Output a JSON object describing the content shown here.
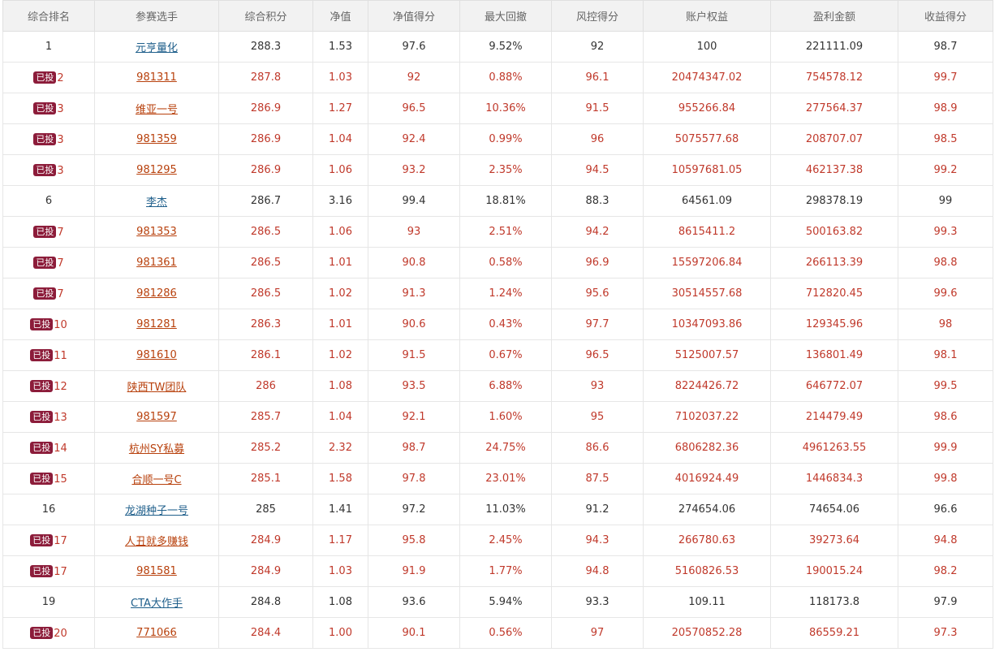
{
  "headers": [
    "综合排名",
    "参赛选手",
    "综合积分",
    "净值",
    "净值得分",
    "最大回撤",
    "风控得分",
    "账户权益",
    "盈利金额",
    "收益得分"
  ],
  "badge_label": "已投",
  "colors": {
    "invested_text": "#c0392b",
    "normal_text": "#333333",
    "link_blue": "#1f5f8b",
    "badge_bg": "#8c1c3a"
  },
  "rows": [
    {
      "invested": false,
      "rank": "1",
      "name": "元亨量化",
      "score": "288.3",
      "nav": "1.53",
      "nav_score": "97.6",
      "max_dd": "9.52%",
      "risk_score": "92",
      "equity": "100",
      "profit": "221111.09",
      "return_score": "98.7"
    },
    {
      "invested": true,
      "rank": "2",
      "name": "981311",
      "score": "287.8",
      "nav": "1.03",
      "nav_score": "92",
      "max_dd": "0.88%",
      "risk_score": "96.1",
      "equity": "20474347.02",
      "profit": "754578.12",
      "return_score": "99.7"
    },
    {
      "invested": true,
      "rank": "3",
      "name": "维亚一号",
      "score": "286.9",
      "nav": "1.27",
      "nav_score": "96.5",
      "max_dd": "10.36%",
      "risk_score": "91.5",
      "equity": "955266.84",
      "profit": "277564.37",
      "return_score": "98.9"
    },
    {
      "invested": true,
      "rank": "3",
      "name": "981359",
      "score": "286.9",
      "nav": "1.04",
      "nav_score": "92.4",
      "max_dd": "0.99%",
      "risk_score": "96",
      "equity": "5075577.68",
      "profit": "208707.07",
      "return_score": "98.5"
    },
    {
      "invested": true,
      "rank": "3",
      "name": "981295",
      "score": "286.9",
      "nav": "1.06",
      "nav_score": "93.2",
      "max_dd": "2.35%",
      "risk_score": "94.5",
      "equity": "10597681.05",
      "profit": "462137.38",
      "return_score": "99.2"
    },
    {
      "invested": false,
      "rank": "6",
      "name": "李杰",
      "score": "286.7",
      "nav": "3.16",
      "nav_score": "99.4",
      "max_dd": "18.81%",
      "risk_score": "88.3",
      "equity": "64561.09",
      "profit": "298378.19",
      "return_score": "99"
    },
    {
      "invested": true,
      "rank": "7",
      "name": "981353",
      "score": "286.5",
      "nav": "1.06",
      "nav_score": "93",
      "max_dd": "2.51%",
      "risk_score": "94.2",
      "equity": "8615411.2",
      "profit": "500163.82",
      "return_score": "99.3"
    },
    {
      "invested": true,
      "rank": "7",
      "name": "981361",
      "score": "286.5",
      "nav": "1.01",
      "nav_score": "90.8",
      "max_dd": "0.58%",
      "risk_score": "96.9",
      "equity": "15597206.84",
      "profit": "266113.39",
      "return_score": "98.8"
    },
    {
      "invested": true,
      "rank": "7",
      "name": "981286",
      "score": "286.5",
      "nav": "1.02",
      "nav_score": "91.3",
      "max_dd": "1.24%",
      "risk_score": "95.6",
      "equity": "30514557.68",
      "profit": "712820.45",
      "return_score": "99.6"
    },
    {
      "invested": true,
      "rank": "10",
      "name": "981281",
      "score": "286.3",
      "nav": "1.01",
      "nav_score": "90.6",
      "max_dd": "0.43%",
      "risk_score": "97.7",
      "equity": "10347093.86",
      "profit": "129345.96",
      "return_score": "98"
    },
    {
      "invested": true,
      "rank": "11",
      "name": "981610",
      "score": "286.1",
      "nav": "1.02",
      "nav_score": "91.5",
      "max_dd": "0.67%",
      "risk_score": "96.5",
      "equity": "5125007.57",
      "profit": "136801.49",
      "return_score": "98.1"
    },
    {
      "invested": true,
      "rank": "12",
      "name": "陕西TW团队",
      "score": "286",
      "nav": "1.08",
      "nav_score": "93.5",
      "max_dd": "6.88%",
      "risk_score": "93",
      "equity": "8224426.72",
      "profit": "646772.07",
      "return_score": "99.5"
    },
    {
      "invested": true,
      "rank": "13",
      "name": "981597",
      "score": "285.7",
      "nav": "1.04",
      "nav_score": "92.1",
      "max_dd": "1.60%",
      "risk_score": "95",
      "equity": "7102037.22",
      "profit": "214479.49",
      "return_score": "98.6"
    },
    {
      "invested": true,
      "rank": "14",
      "name": "杭州SY私募",
      "score": "285.2",
      "nav": "2.32",
      "nav_score": "98.7",
      "max_dd": "24.75%",
      "risk_score": "86.6",
      "equity": "6806282.36",
      "profit": "4961263.55",
      "return_score": "99.9"
    },
    {
      "invested": true,
      "rank": "15",
      "name": "合顺一号C",
      "score": "285.1",
      "nav": "1.58",
      "nav_score": "97.8",
      "max_dd": "23.01%",
      "risk_score": "87.5",
      "equity": "4016924.49",
      "profit": "1446834.3",
      "return_score": "99.8"
    },
    {
      "invested": false,
      "rank": "16",
      "name": "龙湖种子一号",
      "score": "285",
      "nav": "1.41",
      "nav_score": "97.2",
      "max_dd": "11.03%",
      "risk_score": "91.2",
      "equity": "274654.06",
      "profit": "74654.06",
      "return_score": "96.6"
    },
    {
      "invested": true,
      "rank": "17",
      "name": "人丑就多赚钱",
      "score": "284.9",
      "nav": "1.17",
      "nav_score": "95.8",
      "max_dd": "2.45%",
      "risk_score": "94.3",
      "equity": "266780.63",
      "profit": "39273.64",
      "return_score": "94.8"
    },
    {
      "invested": true,
      "rank": "17",
      "name": "981581",
      "score": "284.9",
      "nav": "1.03",
      "nav_score": "91.9",
      "max_dd": "1.77%",
      "risk_score": "94.8",
      "equity": "5160826.53",
      "profit": "190015.24",
      "return_score": "98.2"
    },
    {
      "invested": false,
      "rank": "19",
      "name": "CTA大作手",
      "score": "284.8",
      "nav": "1.08",
      "nav_score": "93.6",
      "max_dd": "5.94%",
      "risk_score": "93.3",
      "equity": "109.11",
      "profit": "118173.8",
      "return_score": "97.9"
    },
    {
      "invested": true,
      "rank": "20",
      "name": "771066",
      "score": "284.4",
      "nav": "1.00",
      "nav_score": "90.1",
      "max_dd": "0.56%",
      "risk_score": "97",
      "equity": "20570852.28",
      "profit": "86559.21",
      "return_score": "97.3"
    }
  ]
}
